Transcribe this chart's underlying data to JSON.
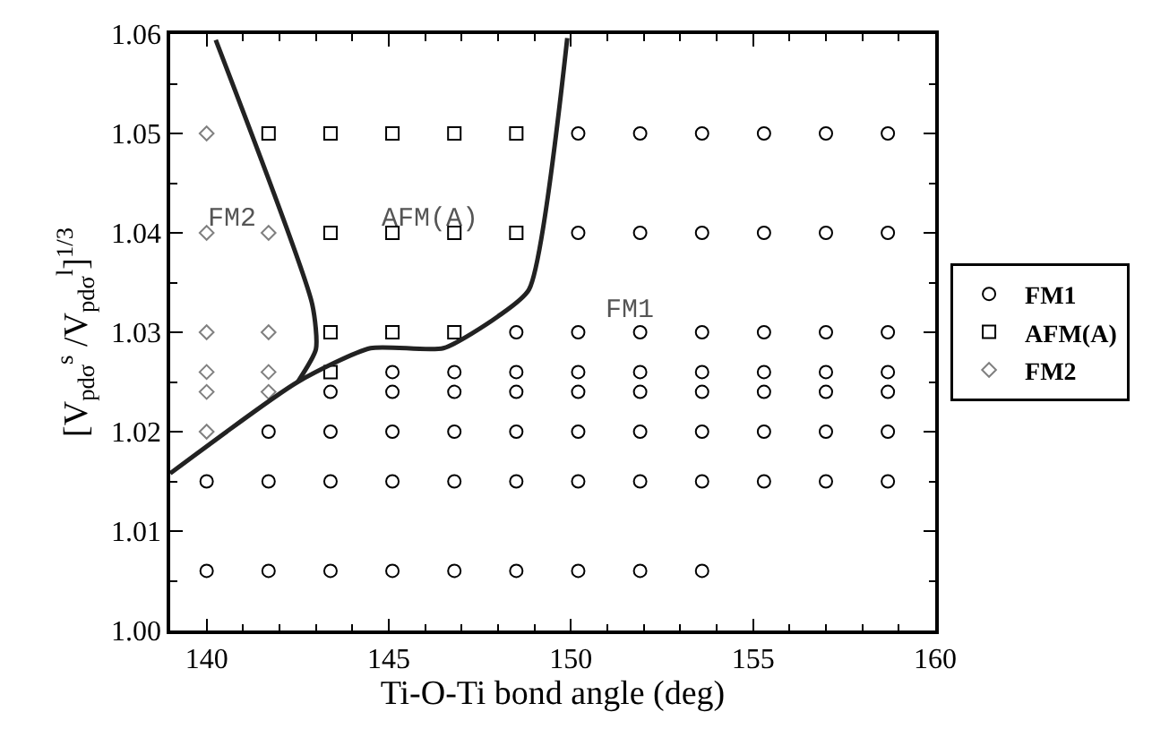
{
  "chart_data": {
    "type": "scatter",
    "xlabel": "Ti-O-Ti bond angle (deg)",
    "ylabel": "[V$_{pdσ}$$^{s}$ /V$_{pdσ}$$^{l}$]$^{1/3}$",
    "xlim": [
      139,
      160
    ],
    "xticks": [
      140,
      145,
      150,
      155,
      160
    ],
    "ylim": [
      1.0,
      1.06
    ],
    "yticks": [
      {
        "value": 1.0,
        "label": "1.00"
      },
      {
        "value": 1.01,
        "label": "1.01"
      },
      {
        "value": 1.02,
        "label": "1.02"
      },
      {
        "value": 1.03,
        "label": "1.03"
      },
      {
        "value": 1.04,
        "label": "1.04"
      },
      {
        "value": 1.05,
        "label": "1.05"
      },
      {
        "value": 1.06,
        "label": "1.06"
      }
    ],
    "legend": "right",
    "series": [
      {
        "name": "FM1",
        "color": "#000000",
        "marker": "circle",
        "x": [
          150.2,
          151.9,
          153.6,
          155.3,
          157.0,
          158.7,
          150.2,
          151.9,
          153.6,
          155.3,
          157.0,
          158.7,
          148.5,
          150.2,
          151.9,
          153.6,
          155.3,
          157.0,
          158.7,
          145.1,
          146.8,
          148.5,
          150.2,
          151.9,
          153.6,
          155.3,
          157.0,
          158.7,
          143.4,
          145.1,
          146.8,
          148.5,
          150.2,
          151.9,
          153.6,
          155.3,
          157.0,
          158.7,
          141.7,
          143.4,
          145.1,
          146.8,
          148.5,
          150.2,
          151.9,
          153.6,
          155.3,
          157.0,
          158.7,
          140.0,
          141.7,
          143.4,
          145.1,
          146.8,
          148.5,
          150.2,
          151.9,
          153.6,
          155.3,
          157.0,
          158.7,
          140.0,
          141.7,
          143.4,
          145.1,
          146.8,
          148.5,
          150.2,
          151.9,
          153.6
        ],
        "values": [
          1.05,
          1.05,
          1.05,
          1.05,
          1.05,
          1.05,
          1.04,
          1.04,
          1.04,
          1.04,
          1.04,
          1.04,
          1.03,
          1.03,
          1.03,
          1.03,
          1.03,
          1.03,
          1.03,
          1.026,
          1.026,
          1.026,
          1.026,
          1.026,
          1.026,
          1.026,
          1.026,
          1.026,
          1.024,
          1.024,
          1.024,
          1.024,
          1.024,
          1.024,
          1.024,
          1.024,
          1.024,
          1.024,
          1.02,
          1.02,
          1.02,
          1.02,
          1.02,
          1.02,
          1.02,
          1.02,
          1.02,
          1.02,
          1.02,
          1.015,
          1.015,
          1.015,
          1.015,
          1.015,
          1.015,
          1.015,
          1.015,
          1.015,
          1.015,
          1.015,
          1.015,
          1.006,
          1.006,
          1.006,
          1.006,
          1.006,
          1.006,
          1.006,
          1.006,
          1.006
        ]
      },
      {
        "name": "AFM(A)",
        "color": "#000000",
        "marker": "square",
        "x": [
          141.7,
          143.4,
          145.1,
          146.8,
          148.5,
          143.4,
          145.1,
          146.8,
          148.5,
          143.4,
          145.1,
          146.8,
          143.4
        ],
        "values": [
          1.05,
          1.05,
          1.05,
          1.05,
          1.05,
          1.04,
          1.04,
          1.04,
          1.04,
          1.03,
          1.03,
          1.03,
          1.026
        ]
      },
      {
        "name": "FM2",
        "color": "#808080",
        "marker": "diamond",
        "x": [
          140.0,
          140.0,
          141.7,
          140.0,
          141.7,
          140.0,
          141.7,
          140.0,
          141.7,
          140.0
        ],
        "values": [
          1.05,
          1.04,
          1.04,
          1.03,
          1.03,
          1.026,
          1.026,
          1.024,
          1.024,
          1.02
        ]
      },
      {
        "type": "line",
        "color": "#222222",
        "x": [
          140.25,
          142.9,
          143.0,
          142.5
        ],
        "values": [
          1.0594,
          1.0328,
          1.0283,
          1.025
        ]
      },
      {
        "type": "line",
        "color": "#222222",
        "x": [
          139.0,
          142.5,
          144.5,
          146.5,
          148.0,
          148.85,
          149.9
        ],
        "values": [
          1.0158,
          1.025,
          1.0284,
          1.0284,
          1.0316,
          1.0343,
          1.0596
        ]
      }
    ],
    "annotations": [
      "FM2",
      "AFM(A)",
      "FM1"
    ]
  }
}
